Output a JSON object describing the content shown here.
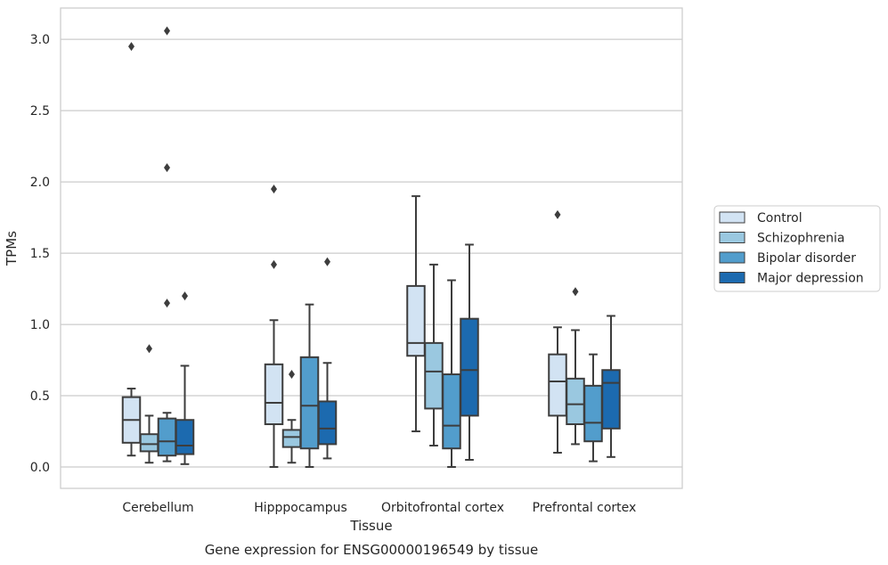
{
  "caption": "Gene expression for ENSG00000196549 by tissue",
  "chart_data": {
    "type": "box",
    "xlabel": "Tissue",
    "ylabel": "TPMs",
    "ylim": [
      -0.15,
      3.22
    ],
    "yticks": [
      "0.0",
      "0.5",
      "1.0",
      "1.5",
      "2.0",
      "2.5",
      "3.0"
    ],
    "grid": true,
    "legend_position": "right",
    "categories": [
      "Cerebellum",
      "Hipppocampus",
      "Orbitofrontal cortex",
      "Prefrontal cortex"
    ],
    "series": [
      {
        "name": "Control",
        "color": "#d2e3f3",
        "boxes": [
          {
            "whislo": 0.08,
            "q1": 0.17,
            "med": 0.33,
            "q3": 0.49,
            "whishi": 0.55,
            "fliers": [
              2.95
            ]
          },
          {
            "whislo": 0.0,
            "q1": 0.3,
            "med": 0.45,
            "q3": 0.72,
            "whishi": 1.03,
            "fliers": [
              1.42,
              1.95
            ]
          },
          {
            "whislo": 0.25,
            "q1": 0.78,
            "med": 0.87,
            "q3": 1.27,
            "whishi": 1.9,
            "fliers": []
          },
          {
            "whislo": 0.1,
            "q1": 0.36,
            "med": 0.6,
            "q3": 0.79,
            "whishi": 0.98,
            "fliers": [
              1.77
            ]
          }
        ]
      },
      {
        "name": "Schizophrenia",
        "color": "#9ac8e0",
        "boxes": [
          {
            "whislo": 0.03,
            "q1": 0.11,
            "med": 0.16,
            "q3": 0.23,
            "whishi": 0.36,
            "fliers": [
              0.83
            ]
          },
          {
            "whislo": 0.03,
            "q1": 0.14,
            "med": 0.21,
            "q3": 0.26,
            "whishi": 0.33,
            "fliers": [
              0.65
            ]
          },
          {
            "whislo": 0.15,
            "q1": 0.41,
            "med": 0.67,
            "q3": 0.87,
            "whishi": 1.42,
            "fliers": []
          },
          {
            "whislo": 0.16,
            "q1": 0.3,
            "med": 0.44,
            "q3": 0.62,
            "whishi": 0.96,
            "fliers": [
              1.23
            ]
          }
        ]
      },
      {
        "name": "Bipolar disorder",
        "color": "#529dcc",
        "boxes": [
          {
            "whislo": 0.04,
            "q1": 0.08,
            "med": 0.18,
            "q3": 0.34,
            "whishi": 0.38,
            "fliers": [
              1.15,
              2.1,
              3.06
            ]
          },
          {
            "whislo": 0.0,
            "q1": 0.13,
            "med": 0.43,
            "q3": 0.77,
            "whishi": 1.14,
            "fliers": []
          },
          {
            "whislo": 0.0,
            "q1": 0.13,
            "med": 0.29,
            "q3": 0.65,
            "whishi": 1.31,
            "fliers": []
          },
          {
            "whislo": 0.04,
            "q1": 0.18,
            "med": 0.31,
            "q3": 0.57,
            "whishi": 0.79,
            "fliers": []
          }
        ]
      },
      {
        "name": "Major depression",
        "color": "#1c6aaf",
        "boxes": [
          {
            "whislo": 0.02,
            "q1": 0.09,
            "med": 0.15,
            "q3": 0.33,
            "whishi": 0.71,
            "fliers": [
              1.2
            ]
          },
          {
            "whislo": 0.06,
            "q1": 0.16,
            "med": 0.27,
            "q3": 0.46,
            "whishi": 0.73,
            "fliers": [
              1.44
            ]
          },
          {
            "whislo": 0.05,
            "q1": 0.36,
            "med": 0.68,
            "q3": 1.04,
            "whishi": 1.56,
            "fliers": []
          },
          {
            "whislo": 0.07,
            "q1": 0.27,
            "med": 0.59,
            "q3": 0.68,
            "whishi": 1.06,
            "fliers": []
          }
        ]
      }
    ]
  }
}
